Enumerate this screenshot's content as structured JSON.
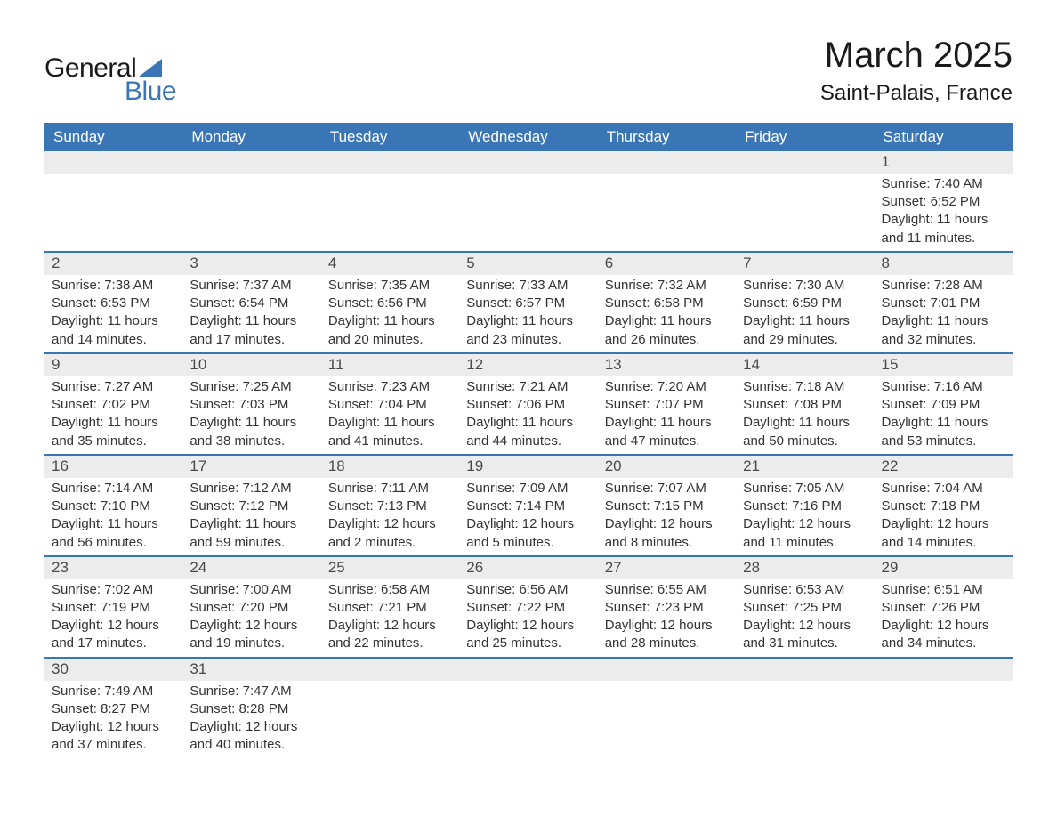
{
  "logo": {
    "text1": "General",
    "text2": "Blue",
    "triangle_color": "#3a76b5"
  },
  "title": {
    "month": "March 2025",
    "location": "Saint-Palais, France"
  },
  "colors": {
    "header_bg": "#3a76b5",
    "header_fg": "#ffffff",
    "daynum_bg": "#ececec",
    "daynum_fg": "#4a4a4a",
    "body_fg": "#333333",
    "week_border": "#3a76b5",
    "page_bg": "#ffffff"
  },
  "fonts": {
    "family": "Arial",
    "month_title_pt": 40,
    "location_pt": 24,
    "weekday_pt": 17,
    "daynum_pt": 17,
    "body_pt": 15
  },
  "weekdays": [
    "Sunday",
    "Monday",
    "Tuesday",
    "Wednesday",
    "Thursday",
    "Friday",
    "Saturday"
  ],
  "weeks": [
    [
      null,
      null,
      null,
      null,
      null,
      null,
      {
        "n": "1",
        "sunrise": "Sunrise: 7:40 AM",
        "sunset": "Sunset: 6:52 PM",
        "daylight": "Daylight: 11 hours and 11 minutes."
      }
    ],
    [
      {
        "n": "2",
        "sunrise": "Sunrise: 7:38 AM",
        "sunset": "Sunset: 6:53 PM",
        "daylight": "Daylight: 11 hours and 14 minutes."
      },
      {
        "n": "3",
        "sunrise": "Sunrise: 7:37 AM",
        "sunset": "Sunset: 6:54 PM",
        "daylight": "Daylight: 11 hours and 17 minutes."
      },
      {
        "n": "4",
        "sunrise": "Sunrise: 7:35 AM",
        "sunset": "Sunset: 6:56 PM",
        "daylight": "Daylight: 11 hours and 20 minutes."
      },
      {
        "n": "5",
        "sunrise": "Sunrise: 7:33 AM",
        "sunset": "Sunset: 6:57 PM",
        "daylight": "Daylight: 11 hours and 23 minutes."
      },
      {
        "n": "6",
        "sunrise": "Sunrise: 7:32 AM",
        "sunset": "Sunset: 6:58 PM",
        "daylight": "Daylight: 11 hours and 26 minutes."
      },
      {
        "n": "7",
        "sunrise": "Sunrise: 7:30 AM",
        "sunset": "Sunset: 6:59 PM",
        "daylight": "Daylight: 11 hours and 29 minutes."
      },
      {
        "n": "8",
        "sunrise": "Sunrise: 7:28 AM",
        "sunset": "Sunset: 7:01 PM",
        "daylight": "Daylight: 11 hours and 32 minutes."
      }
    ],
    [
      {
        "n": "9",
        "sunrise": "Sunrise: 7:27 AM",
        "sunset": "Sunset: 7:02 PM",
        "daylight": "Daylight: 11 hours and 35 minutes."
      },
      {
        "n": "10",
        "sunrise": "Sunrise: 7:25 AM",
        "sunset": "Sunset: 7:03 PM",
        "daylight": "Daylight: 11 hours and 38 minutes."
      },
      {
        "n": "11",
        "sunrise": "Sunrise: 7:23 AM",
        "sunset": "Sunset: 7:04 PM",
        "daylight": "Daylight: 11 hours and 41 minutes."
      },
      {
        "n": "12",
        "sunrise": "Sunrise: 7:21 AM",
        "sunset": "Sunset: 7:06 PM",
        "daylight": "Daylight: 11 hours and 44 minutes."
      },
      {
        "n": "13",
        "sunrise": "Sunrise: 7:20 AM",
        "sunset": "Sunset: 7:07 PM",
        "daylight": "Daylight: 11 hours and 47 minutes."
      },
      {
        "n": "14",
        "sunrise": "Sunrise: 7:18 AM",
        "sunset": "Sunset: 7:08 PM",
        "daylight": "Daylight: 11 hours and 50 minutes."
      },
      {
        "n": "15",
        "sunrise": "Sunrise: 7:16 AM",
        "sunset": "Sunset: 7:09 PM",
        "daylight": "Daylight: 11 hours and 53 minutes."
      }
    ],
    [
      {
        "n": "16",
        "sunrise": "Sunrise: 7:14 AM",
        "sunset": "Sunset: 7:10 PM",
        "daylight": "Daylight: 11 hours and 56 minutes."
      },
      {
        "n": "17",
        "sunrise": "Sunrise: 7:12 AM",
        "sunset": "Sunset: 7:12 PM",
        "daylight": "Daylight: 11 hours and 59 minutes."
      },
      {
        "n": "18",
        "sunrise": "Sunrise: 7:11 AM",
        "sunset": "Sunset: 7:13 PM",
        "daylight": "Daylight: 12 hours and 2 minutes."
      },
      {
        "n": "19",
        "sunrise": "Sunrise: 7:09 AM",
        "sunset": "Sunset: 7:14 PM",
        "daylight": "Daylight: 12 hours and 5 minutes."
      },
      {
        "n": "20",
        "sunrise": "Sunrise: 7:07 AM",
        "sunset": "Sunset: 7:15 PM",
        "daylight": "Daylight: 12 hours and 8 minutes."
      },
      {
        "n": "21",
        "sunrise": "Sunrise: 7:05 AM",
        "sunset": "Sunset: 7:16 PM",
        "daylight": "Daylight: 12 hours and 11 minutes."
      },
      {
        "n": "22",
        "sunrise": "Sunrise: 7:04 AM",
        "sunset": "Sunset: 7:18 PM",
        "daylight": "Daylight: 12 hours and 14 minutes."
      }
    ],
    [
      {
        "n": "23",
        "sunrise": "Sunrise: 7:02 AM",
        "sunset": "Sunset: 7:19 PM",
        "daylight": "Daylight: 12 hours and 17 minutes."
      },
      {
        "n": "24",
        "sunrise": "Sunrise: 7:00 AM",
        "sunset": "Sunset: 7:20 PM",
        "daylight": "Daylight: 12 hours and 19 minutes."
      },
      {
        "n": "25",
        "sunrise": "Sunrise: 6:58 AM",
        "sunset": "Sunset: 7:21 PM",
        "daylight": "Daylight: 12 hours and 22 minutes."
      },
      {
        "n": "26",
        "sunrise": "Sunrise: 6:56 AM",
        "sunset": "Sunset: 7:22 PM",
        "daylight": "Daylight: 12 hours and 25 minutes."
      },
      {
        "n": "27",
        "sunrise": "Sunrise: 6:55 AM",
        "sunset": "Sunset: 7:23 PM",
        "daylight": "Daylight: 12 hours and 28 minutes."
      },
      {
        "n": "28",
        "sunrise": "Sunrise: 6:53 AM",
        "sunset": "Sunset: 7:25 PM",
        "daylight": "Daylight: 12 hours and 31 minutes."
      },
      {
        "n": "29",
        "sunrise": "Sunrise: 6:51 AM",
        "sunset": "Sunset: 7:26 PM",
        "daylight": "Daylight: 12 hours and 34 minutes."
      }
    ],
    [
      {
        "n": "30",
        "sunrise": "Sunrise: 7:49 AM",
        "sunset": "Sunset: 8:27 PM",
        "daylight": "Daylight: 12 hours and 37 minutes."
      },
      {
        "n": "31",
        "sunrise": "Sunrise: 7:47 AM",
        "sunset": "Sunset: 8:28 PM",
        "daylight": "Daylight: 12 hours and 40 minutes."
      },
      null,
      null,
      null,
      null,
      null
    ]
  ]
}
